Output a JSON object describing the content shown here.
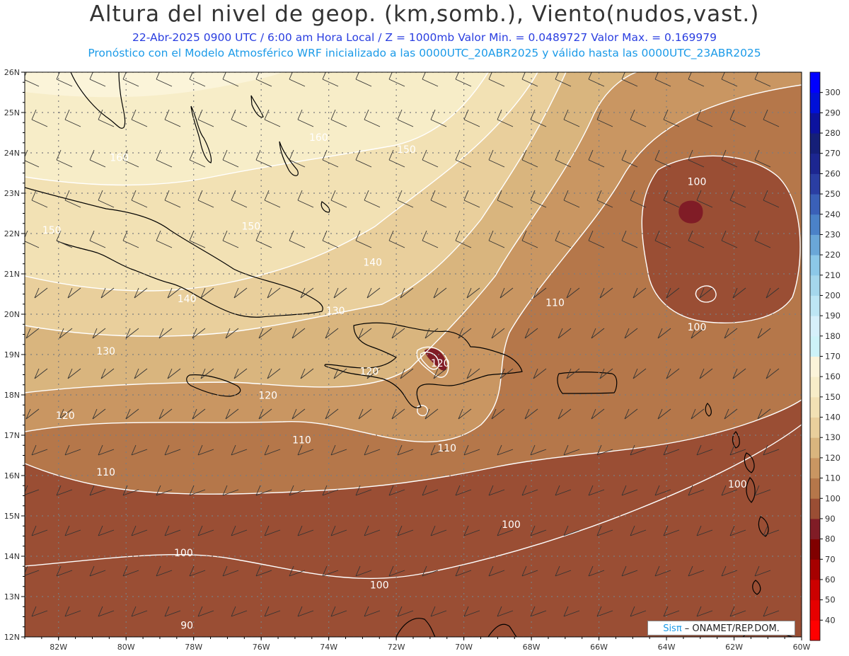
{
  "title": "Altura del nivel de geop. (km,somb.), Viento(nudos,vast.)",
  "subtitle_line1": "22-Abr-2025  0900 UTC / 6:00 am Hora Local / Z = 1000mb  Valor Min. = 0.0489727  Valor Max. = 0.169979",
  "subtitle_line2": "Pronóstico con el Modelo Atmosférico WRF inicializado a las 0000UTC_20ABR2025 y válido hasta las  0000UTC_23ABR2025",
  "map": {
    "lon_range": [
      -83,
      -60
    ],
    "lat_range": [
      12,
      26
    ],
    "lon_ticks": [
      "82W",
      "80W",
      "78W",
      "76W",
      "74W",
      "72W",
      "70W",
      "68W",
      "66W",
      "64W",
      "62W",
      "60W"
    ],
    "lat_ticks": [
      "12N",
      "13N",
      "14N",
      "15N",
      "16N",
      "17N",
      "18N",
      "19N",
      "20N",
      "21N",
      "22N",
      "23N",
      "24N",
      "25N",
      "26N"
    ],
    "contour_labels": [
      {
        "text": "160",
        "lon": -80.2,
        "lat": 23.8
      },
      {
        "text": "150",
        "lon": -82.2,
        "lat": 22.0
      },
      {
        "text": "150",
        "lon": -76.3,
        "lat": 22.1
      },
      {
        "text": "150",
        "lon": -71.7,
        "lat": 24.0
      },
      {
        "text": "160",
        "lon": -74.3,
        "lat": 24.3
      },
      {
        "text": "140",
        "lon": -78.2,
        "lat": 20.3
      },
      {
        "text": "140",
        "lon": -72.7,
        "lat": 21.2
      },
      {
        "text": "130",
        "lon": -80.6,
        "lat": 19.0
      },
      {
        "text": "130",
        "lon": -73.8,
        "lat": 20.0
      },
      {
        "text": "120",
        "lon": -81.8,
        "lat": 17.4
      },
      {
        "text": "120",
        "lon": -75.8,
        "lat": 17.9
      },
      {
        "text": "120",
        "lon": -72.8,
        "lat": 18.5
      },
      {
        "text": "120",
        "lon": -70.7,
        "lat": 18.7
      },
      {
        "text": "110",
        "lon": -80.6,
        "lat": 16.0
      },
      {
        "text": "110",
        "lon": -74.8,
        "lat": 16.8
      },
      {
        "text": "110",
        "lon": -70.5,
        "lat": 16.6
      },
      {
        "text": "110",
        "lon": -67.3,
        "lat": 20.2
      },
      {
        "text": "100",
        "lon": -78.3,
        "lat": 14.0
      },
      {
        "text": "100",
        "lon": -72.5,
        "lat": 13.2
      },
      {
        "text": "100",
        "lon": -68.6,
        "lat": 14.7
      },
      {
        "text": "100",
        "lon": -61.9,
        "lat": 15.7
      },
      {
        "text": "100",
        "lon": -63.1,
        "lat": 23.2
      },
      {
        "text": "100",
        "lon": -63.1,
        "lat": 19.6
      },
      {
        "text": "90",
        "lon": -78.2,
        "lat": 12.2
      }
    ]
  },
  "colorbar": {
    "labels": [
      "40",
      "50",
      "60",
      "70",
      "80",
      "90",
      "100",
      "110",
      "120",
      "130",
      "140",
      "150",
      "160",
      "170",
      "180",
      "190",
      "200",
      "210",
      "220",
      "230",
      "240",
      "250",
      "260",
      "270",
      "280",
      "290",
      "300"
    ],
    "colors": [
      "#ff0000",
      "#e60000",
      "#cc0000",
      "#a60000",
      "#800000",
      "#801c26",
      "#9a4e34",
      "#b5774a",
      "#c99662",
      "#d9b57e",
      "#e9cf9c",
      "#f2e1b4",
      "#f7edc8",
      "#fbf4d9",
      "#cdf3f8",
      "#d6f0fa",
      "#bde6f4",
      "#a5d7ec",
      "#8cc8e8",
      "#6aa7d8",
      "#4b82c8",
      "#3a60b8",
      "#2a3ea3",
      "#1c2690",
      "#151f78",
      "#0c129e",
      "#0010d8",
      "#0000ff"
    ]
  },
  "credit": {
    "brand": "Sisπ",
    "text": " – ONAMET/REP.DOM."
  }
}
